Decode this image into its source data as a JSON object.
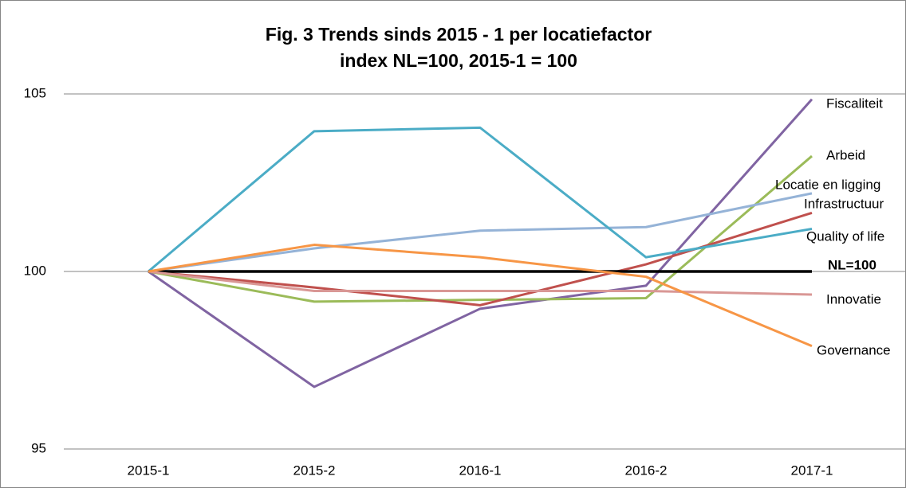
{
  "chart_data": {
    "type": "line",
    "title": "Fig. 3  Trends sinds 2015 - 1 per locatiefactor",
    "subtitle": "index NL=100, 2015-1 = 100",
    "categories": [
      "2015-1",
      "2015-2",
      "2016-1",
      "2016-2",
      "2017-1"
    ],
    "ylim": [
      95,
      105
    ],
    "yticks": [
      95,
      100,
      105
    ],
    "grid": true,
    "series": [
      {
        "name": "Fiscaliteit",
        "color": "#8064a2",
        "values": [
          100,
          96.75,
          98.95,
          99.6,
          104.85
        ]
      },
      {
        "name": "Arbeid",
        "color": "#9bbb59",
        "values": [
          100,
          99.15,
          99.2,
          99.25,
          103.25
        ]
      },
      {
        "name": "Locatie en ligging",
        "color": "#95b3d7",
        "values": [
          100,
          100.65,
          101.15,
          101.25,
          102.2
        ]
      },
      {
        "name": "Infrastructuur",
        "color": "#c0504d",
        "values": [
          100,
          99.55,
          99.05,
          100.2,
          101.65
        ]
      },
      {
        "name": "Quality of life",
        "color": "#4bacc6",
        "values": [
          100,
          103.95,
          104.05,
          100.4,
          101.2
        ]
      },
      {
        "name": "NL=100",
        "color": "#000000",
        "values": [
          100,
          100,
          100,
          100,
          100
        ]
      },
      {
        "name": "Innovatie",
        "color": "#d99795",
        "values": [
          100,
          99.45,
          99.45,
          99.45,
          99.35
        ]
      },
      {
        "name": "Governance",
        "color": "#f79646",
        "values": [
          100,
          100.75,
          100.4,
          99.85,
          97.9
        ]
      }
    ]
  }
}
